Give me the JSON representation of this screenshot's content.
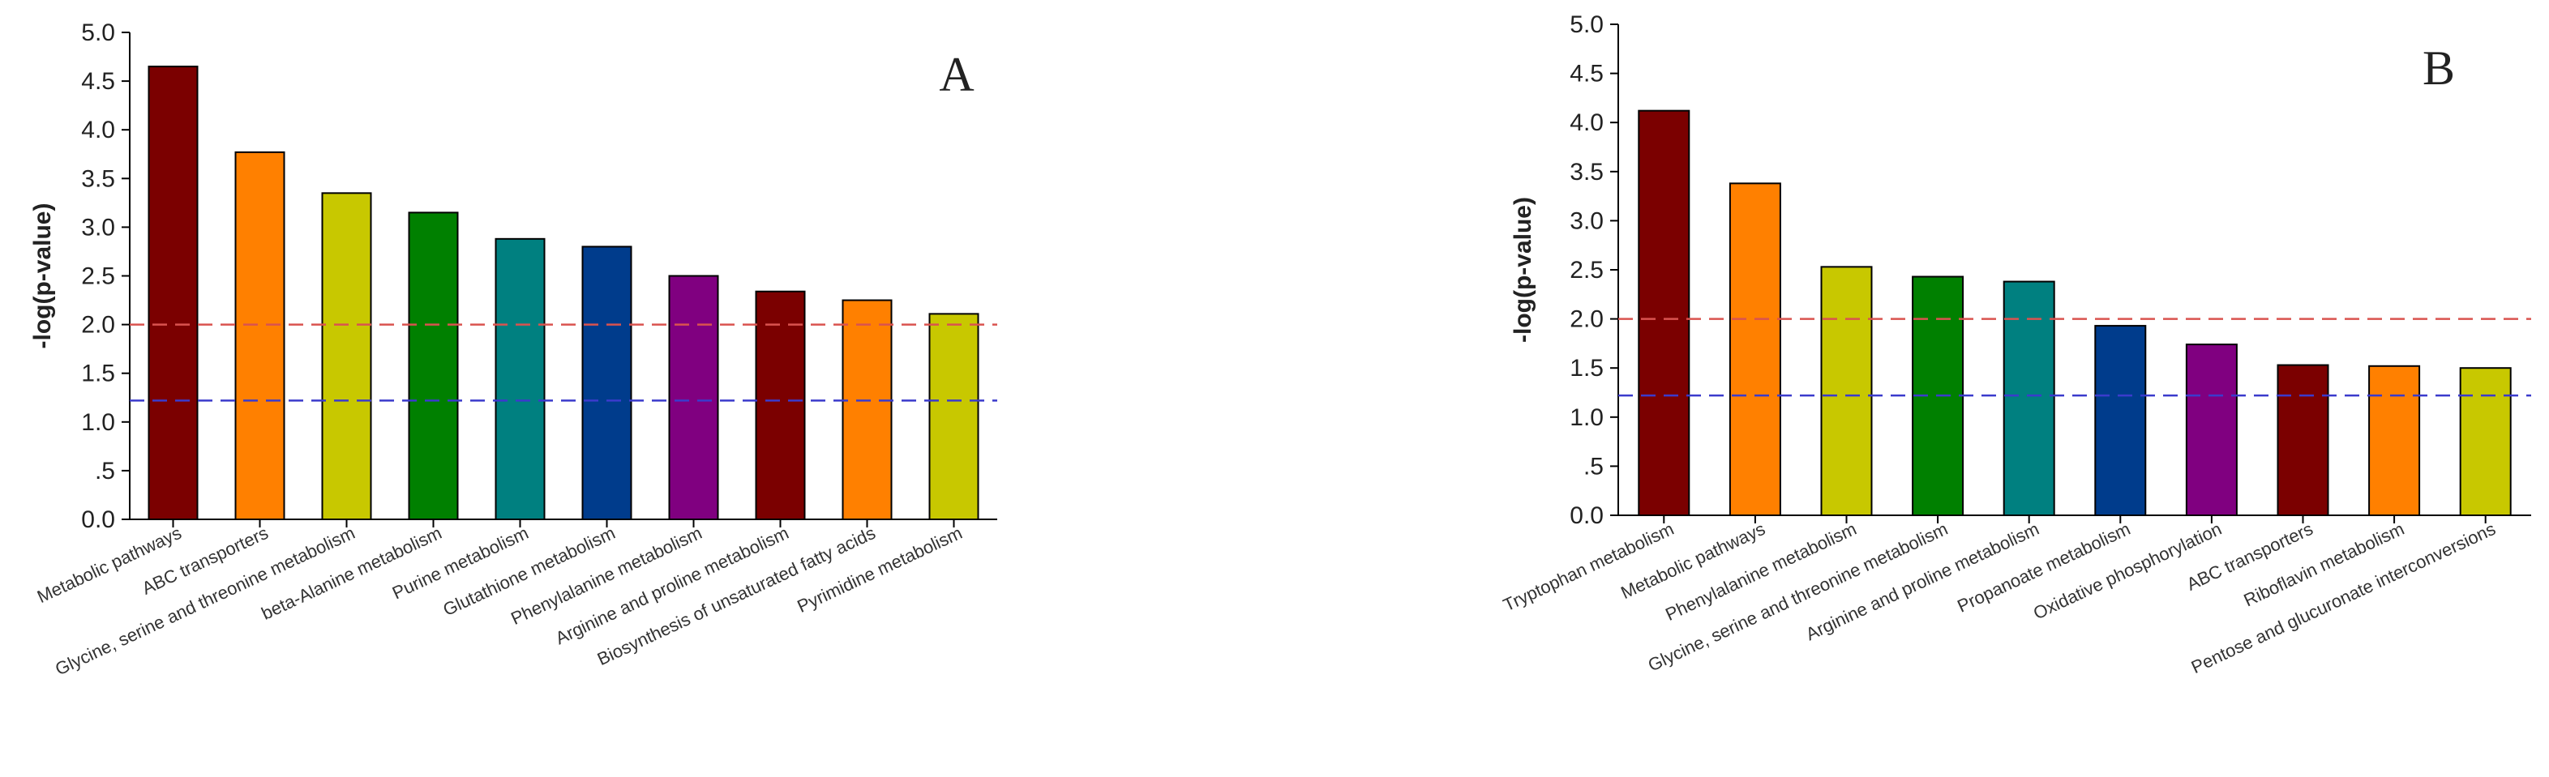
{
  "chart_data": [
    {
      "type": "bar",
      "panel_label": "A",
      "ylabel": "-log(p-value)",
      "xlabel": "",
      "ylim": [
        0,
        5
      ],
      "yticks": [
        "0.0",
        ".5",
        "1.0",
        "1.5",
        "2.0",
        "2.5",
        "3.0",
        "3.5",
        "4.0",
        "4.5",
        "5.0"
      ],
      "categories": [
        "Metabolic pathways",
        "ABC transporters",
        "Glycine, serine and threonine metabolism",
        "beta-Alanine metabolism",
        "Purine metabolism",
        "Glutathione metabolism",
        "Phenylalanine metabolism",
        "Arginine and proline metabolism",
        "Biosynthesis of unsaturated fatty acids",
        "Pyrimidine metabolism"
      ],
      "values": [
        4.65,
        3.77,
        3.35,
        3.15,
        2.88,
        2.8,
        2.5,
        2.34,
        2.25,
        2.11
      ],
      "bar_colors": [
        "#7b0000",
        "#ff8000",
        "#c8c800",
        "#008000",
        "#008080",
        "#003c8c",
        "#800080",
        "#7b0000",
        "#ff8000",
        "#c8c800"
      ],
      "reference_lines": [
        {
          "value": 2.0,
          "color": "#d9534f",
          "style": "dashed"
        },
        {
          "value": 1.22,
          "color": "#3b3bcc",
          "style": "dashed"
        }
      ],
      "grid": false
    },
    {
      "type": "bar",
      "panel_label": "B",
      "ylabel": "-log(p-value)",
      "xlabel": "",
      "ylim": [
        0,
        5
      ],
      "yticks": [
        "0.0",
        ".5",
        "1.0",
        "1.5",
        "2.0",
        "2.5",
        "3.0",
        "3.5",
        "4.0",
        "4.5",
        "5.0"
      ],
      "categories": [
        "Tryptophan metabolism",
        "Metabolic pathways",
        "Phenylalanine metabolism",
        "Glycine, serine and threonine metabolism",
        "Arginine and proline metabolism",
        "Propanoate metabolism",
        "Oxidative phosphorylation",
        "ABC transporters",
        "Riboflavin metabolism",
        "Pentose and glucuronate interconversions"
      ],
      "values": [
        4.12,
        3.38,
        2.53,
        2.43,
        2.38,
        1.93,
        1.74,
        1.53,
        1.52,
        1.5
      ],
      "bar_colors": [
        "#7b0000",
        "#ff8000",
        "#c8c800",
        "#008000",
        "#008080",
        "#003c8c",
        "#800080",
        "#7b0000",
        "#ff8000",
        "#c8c800"
      ],
      "reference_lines": [
        {
          "value": 2.0,
          "color": "#d9534f",
          "style": "dashed"
        },
        {
          "value": 1.22,
          "color": "#3b3bcc",
          "style": "dashed"
        }
      ],
      "grid": false
    }
  ]
}
